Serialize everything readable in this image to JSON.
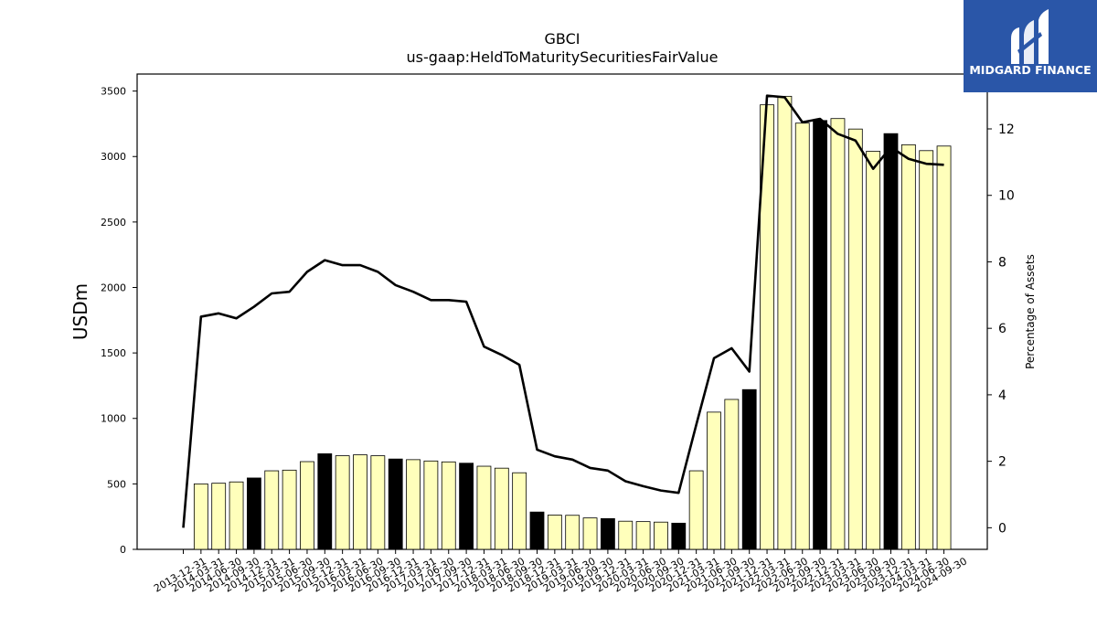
{
  "chart_data": {
    "type": "bar",
    "title": "GBCI",
    "subtitle": "us-gaap:HeldToMaturitySecuritiesFairValue",
    "ylabel": "USDm",
    "y2label": "Percentage of Assets",
    "ylim": [
      0,
      3630
    ],
    "y2lim": [
      -0.65,
      13.65
    ],
    "yticks": [
      0,
      500,
      1000,
      1500,
      2000,
      2500,
      3000,
      3500
    ],
    "y2ticks": [
      0,
      2,
      4,
      6,
      8,
      10,
      12
    ],
    "categories": [
      "2013-12-31",
      "2014-03-31",
      "2014-06-30",
      "2014-09-30",
      "2014-12-31",
      "2015-03-31",
      "2015-06-30",
      "2015-09-30",
      "2015-12-31",
      "2016-03-31",
      "2016-06-30",
      "2016-09-30",
      "2016-12-31",
      "2017-03-31",
      "2017-06-30",
      "2017-09-30",
      "2017-12-31",
      "2018-03-31",
      "2018-06-30",
      "2018-09-30",
      "2018-12-31",
      "2019-03-31",
      "2019-06-30",
      "2019-09-30",
      "2019-12-31",
      "2020-03-31",
      "2020-06-30",
      "2020-09-30",
      "2020-12-31",
      "2021-03-31",
      "2021-06-30",
      "2021-09-30",
      "2021-12-31",
      "2022-03-31",
      "2022-06-30",
      "2022-09-30",
      "2022-12-31",
      "2023-03-31",
      "2023-06-30",
      "2023-09-30",
      "2023-12-31",
      "2024-03-31",
      "2024-06-30",
      "2024-09-30"
    ],
    "series": [
      {
        "kind": "bar",
        "values": [
          0,
          500,
          505,
          515,
          545,
          600,
          605,
          670,
          730,
          715,
          722,
          715,
          690,
          685,
          675,
          668,
          658,
          635,
          620,
          585,
          285,
          262,
          260,
          240,
          235,
          215,
          212,
          208,
          200,
          600,
          1048,
          1145,
          1220,
          3395,
          3460,
          3255,
          3275,
          3290,
          3210,
          3040,
          3175,
          3090,
          3045,
          3080
        ],
        "highlight": [
          false,
          false,
          false,
          false,
          true,
          false,
          false,
          false,
          true,
          false,
          false,
          false,
          true,
          false,
          false,
          false,
          true,
          false,
          false,
          false,
          true,
          false,
          false,
          false,
          true,
          false,
          false,
          false,
          true,
          false,
          false,
          false,
          true,
          false,
          false,
          false,
          true,
          false,
          false,
          false,
          true,
          false,
          false,
          false
        ],
        "colors": {
          "normal": "#ffffbb",
          "highlight": "#000000",
          "edge": "#000000"
        }
      },
      {
        "kind": "line",
        "axis": "right",
        "color": "#000000",
        "values": [
          0.0,
          6.35,
          6.45,
          6.3,
          6.65,
          7.05,
          7.1,
          7.7,
          8.05,
          7.9,
          7.9,
          7.7,
          7.3,
          7.1,
          6.85,
          6.85,
          6.8,
          5.45,
          5.2,
          4.9,
          2.35,
          2.15,
          2.05,
          1.8,
          1.72,
          1.4,
          1.25,
          1.12,
          1.05,
          3.1,
          5.1,
          5.4,
          4.7,
          13.0,
          12.95,
          12.2,
          12.3,
          11.85,
          11.65,
          10.8,
          11.45,
          11.1,
          10.95,
          10.92
        ]
      }
    ]
  },
  "logo": {
    "text": "MIDGARD FINANCE",
    "background": "#2a56a8"
  }
}
